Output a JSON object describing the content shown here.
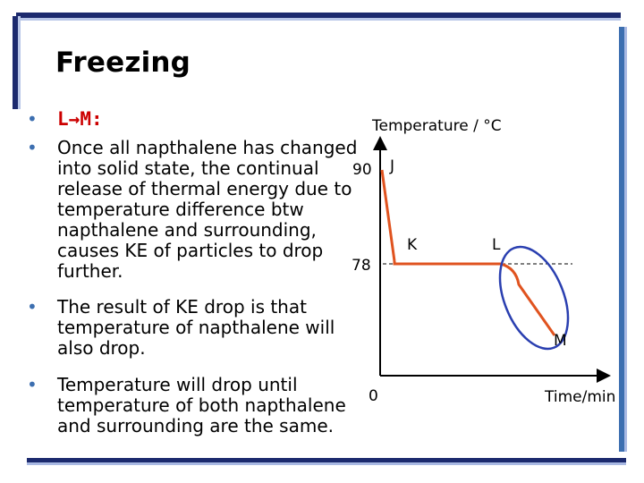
{
  "slide": {
    "title": "Freezing",
    "bullets": [
      {
        "label_start": "L",
        "label_arrow": "→",
        "label_end": "M:"
      },
      {
        "text": "Once all napthalene has changed into solid state, the continual release of thermal energy due to temperature difference btw napthalene and surrounding, causes KE of particles to drop further."
      },
      {
        "text": "The result of KE drop is that temperature of napthalene will also drop."
      },
      {
        "text": "Temperature will drop until temperature of both napthalene and surrounding are the same."
      }
    ]
  },
  "graph": {
    "y_axis_label": "Temperature / °C",
    "x_axis_label": "Time/min",
    "tick_90": "90",
    "tick_78": "78",
    "tick_0": "0",
    "point_J": "J",
    "point_K": "K",
    "point_L": "L",
    "point_M": "M"
  },
  "colors": {
    "curve": "#e0531f",
    "ellipse": "#2a3fb0",
    "axis": "#000000",
    "bullet_dot": "#3d6fb0",
    "highlight": "#cc0000"
  }
}
